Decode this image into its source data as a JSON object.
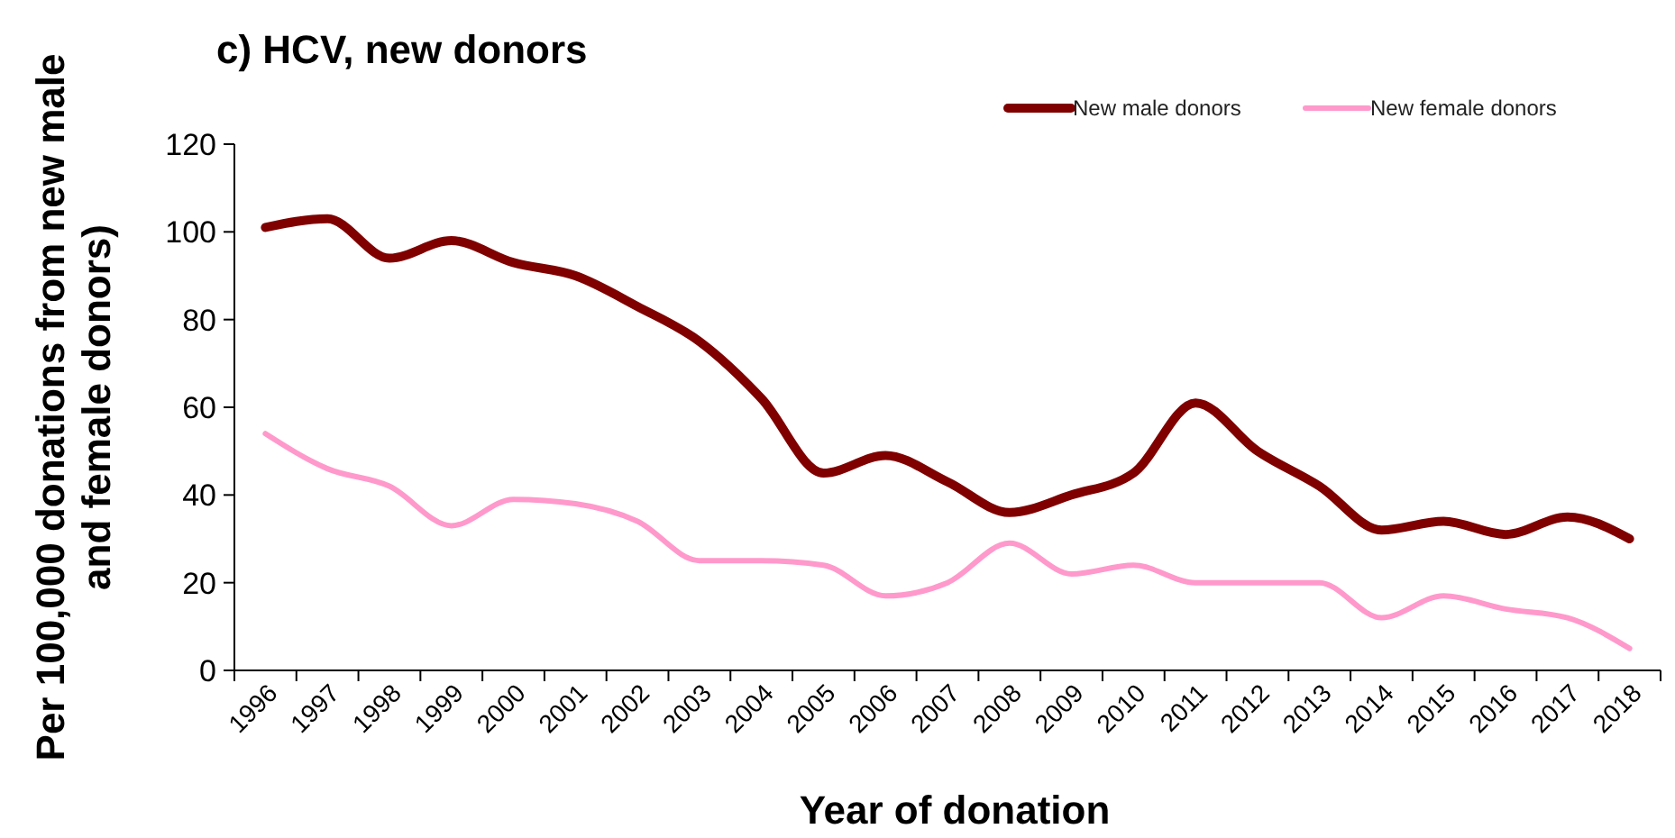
{
  "chart_data": {
    "type": "line",
    "title": "c) HCV, new donors",
    "xlabel": "Year of donation",
    "ylabel": "Per 100,000 donations from new male and female donors)",
    "categories": [
      "1996",
      "1997",
      "1998",
      "1999",
      "2000",
      "2001",
      "2002",
      "2003",
      "2004",
      "2005",
      "2006",
      "2007",
      "2008",
      "2009",
      "2010",
      "2011",
      "2012",
      "2013",
      "2014",
      "2015",
      "2016",
      "2017",
      "2018"
    ],
    "series": [
      {
        "name": "New male donors",
        "color": "#800000",
        "values": [
          101,
          103,
          94,
          98,
          93,
          90,
          83,
          75,
          62,
          45,
          49,
          43,
          36,
          40,
          45,
          61,
          50,
          42,
          32,
          34,
          31,
          35,
          30
        ]
      },
      {
        "name": "New female donors",
        "color": "#ff99cc",
        "values": [
          54,
          46,
          42,
          33,
          39,
          38,
          34,
          25,
          25,
          24,
          17,
          20,
          29,
          22,
          24,
          20,
          20,
          20,
          12,
          17,
          14,
          12,
          5
        ]
      }
    ],
    "ylim": [
      0,
      120
    ],
    "yticks": [
      0,
      20,
      40,
      60,
      80,
      100,
      120
    ],
    "grid": false,
    "legend": "top right",
    "marker": "none",
    "line_style": "solid"
  }
}
